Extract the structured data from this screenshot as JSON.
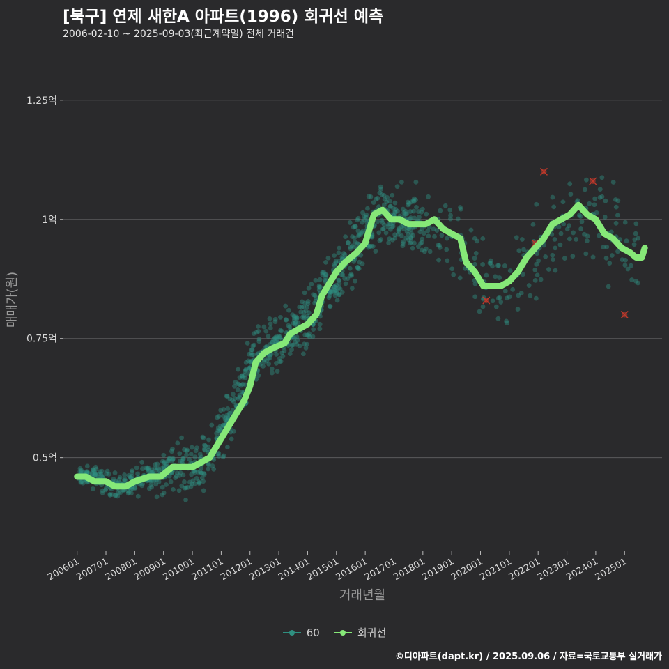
{
  "header": {
    "title": "[북구] 연제 새한A 아파트(1996) 회귀선 예측",
    "subtitle": "2006-02-10 ~ 2025-09-03(최근계약일) 전체 거래건"
  },
  "footer": {
    "credit": "©디아파트(dapt.kr) / 2025.09.06 / 자료=국토교통부 실거래가"
  },
  "colors": {
    "background": "#2a2a2c",
    "grid": "#5a5a5c",
    "scatter": "#2f8f80",
    "regression": "#86e878",
    "outlier": "#c0392b"
  },
  "chart_data": {
    "type": "scatter",
    "xlabel": "거래년월",
    "ylabel": "매매가(원)",
    "x_ticks": [
      "200601",
      "200701",
      "200801",
      "200901",
      "201001",
      "201101",
      "201201",
      "201301",
      "201401",
      "201501",
      "201601",
      "201701",
      "201801",
      "201901",
      "202001",
      "202101",
      "202201",
      "202301",
      "202401",
      "202501"
    ],
    "y_ticks": [
      {
        "value": 0.5,
        "label": "0.5억"
      },
      {
        "value": 0.75,
        "label": "0.75억"
      },
      {
        "value": 1.0,
        "label": "1억"
      },
      {
        "value": 1.25,
        "label": "1.25억"
      }
    ],
    "xlim": [
      2005.5,
      2026.3
    ],
    "ylim": [
      0.305,
      1.355
    ],
    "grid": true,
    "legend_position": "bottom",
    "series": [
      {
        "name": "60",
        "kind": "scatter",
        "trend_points": [
          [
            2006.0,
            0.46
          ],
          [
            2006.5,
            0.46
          ],
          [
            2007.0,
            0.45
          ],
          [
            2007.5,
            0.44
          ],
          [
            2008.0,
            0.45
          ],
          [
            2008.5,
            0.46
          ],
          [
            2009.0,
            0.47
          ],
          [
            2009.5,
            0.48
          ],
          [
            2010.0,
            0.48
          ],
          [
            2010.5,
            0.5
          ],
          [
            2011.0,
            0.55
          ],
          [
            2011.5,
            0.62
          ],
          [
            2012.0,
            0.69
          ],
          [
            2012.5,
            0.73
          ],
          [
            2013.0,
            0.74
          ],
          [
            2013.5,
            0.76
          ],
          [
            2014.0,
            0.78
          ],
          [
            2014.5,
            0.83
          ],
          [
            2015.0,
            0.88
          ],
          [
            2015.5,
            0.92
          ],
          [
            2016.0,
            0.97
          ],
          [
            2016.5,
            1.01
          ],
          [
            2017.0,
            1.0
          ],
          [
            2017.5,
            0.99
          ],
          [
            2018.0,
            0.99
          ],
          [
            2018.5,
            0.99
          ],
          [
            2019.0,
            0.97
          ],
          [
            2019.5,
            0.92
          ],
          [
            2020.0,
            0.87
          ],
          [
            2020.5,
            0.86
          ],
          [
            2021.0,
            0.87
          ],
          [
            2021.5,
            0.9
          ],
          [
            2022.0,
            0.94
          ],
          [
            2022.5,
            0.98
          ],
          [
            2023.0,
            1.0
          ],
          [
            2023.5,
            1.02
          ],
          [
            2024.0,
            1.0
          ],
          [
            2024.5,
            0.97
          ],
          [
            2025.0,
            0.94
          ],
          [
            2025.5,
            0.93
          ]
        ],
        "spread": [
          0.015,
          0.02,
          0.025,
          0.02,
          0.025,
          0.03,
          0.04,
          0.05,
          0.05,
          0.05,
          0.05,
          0.05,
          0.05,
          0.05,
          0.05,
          0.05,
          0.06,
          0.06,
          0.07,
          0.07,
          0.06,
          0.06,
          0.06,
          0.06,
          0.07,
          0.07,
          0.07,
          0.07,
          0.08,
          0.08,
          0.09,
          0.09,
          0.1,
          0.1,
          0.1,
          0.1,
          0.1,
          0.1,
          0.1,
          0.1
        ]
      },
      {
        "name": "회귀선",
        "kind": "line",
        "points": [
          [
            2006.0,
            0.46
          ],
          [
            2006.3,
            0.46
          ],
          [
            2006.6,
            0.45
          ],
          [
            2007.0,
            0.45
          ],
          [
            2007.3,
            0.44
          ],
          [
            2007.7,
            0.44
          ],
          [
            2008.0,
            0.45
          ],
          [
            2008.5,
            0.46
          ],
          [
            2008.9,
            0.46
          ],
          [
            2009.3,
            0.48
          ],
          [
            2009.7,
            0.48
          ],
          [
            2010.0,
            0.48
          ],
          [
            2010.3,
            0.49
          ],
          [
            2010.6,
            0.5
          ],
          [
            2010.9,
            0.53
          ],
          [
            2011.2,
            0.56
          ],
          [
            2011.5,
            0.59
          ],
          [
            2011.8,
            0.62
          ],
          [
            2012.0,
            0.65
          ],
          [
            2012.2,
            0.7
          ],
          [
            2012.5,
            0.72
          ],
          [
            2012.8,
            0.73
          ],
          [
            2013.2,
            0.74
          ],
          [
            2013.4,
            0.76
          ],
          [
            2013.7,
            0.77
          ],
          [
            2014.0,
            0.78
          ],
          [
            2014.3,
            0.8
          ],
          [
            2014.5,
            0.84
          ],
          [
            2014.8,
            0.87
          ],
          [
            2015.0,
            0.89
          ],
          [
            2015.3,
            0.91
          ],
          [
            2015.7,
            0.93
          ],
          [
            2016.0,
            0.95
          ],
          [
            2016.3,
            1.01
          ],
          [
            2016.6,
            1.02
          ],
          [
            2016.9,
            1.0
          ],
          [
            2017.2,
            1.0
          ],
          [
            2017.5,
            0.99
          ],
          [
            2017.8,
            0.99
          ],
          [
            2018.1,
            0.99
          ],
          [
            2018.4,
            1.0
          ],
          [
            2018.7,
            0.98
          ],
          [
            2019.0,
            0.97
          ],
          [
            2019.3,
            0.96
          ],
          [
            2019.5,
            0.91
          ],
          [
            2019.8,
            0.89
          ],
          [
            2020.1,
            0.86
          ],
          [
            2020.4,
            0.86
          ],
          [
            2020.7,
            0.86
          ],
          [
            2021.0,
            0.87
          ],
          [
            2021.3,
            0.89
          ],
          [
            2021.6,
            0.92
          ],
          [
            2021.9,
            0.94
          ],
          [
            2022.2,
            0.96
          ],
          [
            2022.5,
            0.99
          ],
          [
            2022.8,
            1.0
          ],
          [
            2023.1,
            1.01
          ],
          [
            2023.4,
            1.03
          ],
          [
            2023.7,
            1.01
          ],
          [
            2024.0,
            1.0
          ],
          [
            2024.3,
            0.97
          ],
          [
            2024.6,
            0.96
          ],
          [
            2024.9,
            0.94
          ],
          [
            2025.2,
            0.93
          ],
          [
            2025.4,
            0.92
          ],
          [
            2025.6,
            0.92
          ],
          [
            2025.7,
            0.94
          ]
        ]
      }
    ],
    "outliers": [
      [
        2020.2,
        0.83
      ],
      [
        2021.9,
        0.95
      ],
      [
        2022.2,
        1.1
      ],
      [
        2023.9,
        1.08
      ],
      [
        2025.0,
        0.8
      ]
    ],
    "legend": [
      {
        "name": "60",
        "color": "#2f8f80"
      },
      {
        "name": "회귀선",
        "color": "#86e878"
      }
    ]
  }
}
